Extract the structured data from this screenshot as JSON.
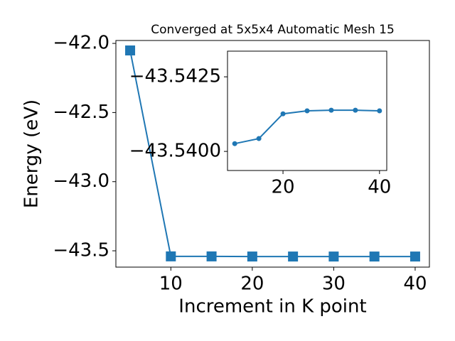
{
  "chart_data": [
    {
      "type": "line",
      "title": "Converged at 5x5x4 Automatic Mesh 15",
      "x_label": "Increment in K point",
      "y_label": "Energy (eV)",
      "x": [
        5,
        10,
        15,
        20,
        25,
        30,
        35,
        40
      ],
      "series": [
        {
          "color": "#1f77b4",
          "marker": "square",
          "values": [
            -42.051,
            -43.54026,
            -43.54043,
            -43.54126,
            -43.54136,
            -43.54138,
            -43.54138,
            -43.54136
          ]
        }
      ],
      "xlim": [
        3.25,
        41.75
      ],
      "xticks": [
        10,
        20,
        30,
        40
      ],
      "ylim": [
        -43.618,
        -41.979
      ],
      "yticks": [
        {
          "value": -42.0,
          "label": "−42.0"
        },
        {
          "value": -42.5,
          "label": "−42.5"
        },
        {
          "value": -43.0,
          "label": "−43.0"
        },
        {
          "value": -43.5,
          "label": "−43.5"
        }
      ]
    },
    {
      "type": "line",
      "x": [
        10,
        15,
        20,
        25,
        30,
        35,
        40
      ],
      "series": [
        {
          "color": "#1f77b4",
          "marker": "circle",
          "values": [
            -43.54026,
            -43.54043,
            -43.54126,
            -43.54136,
            -43.54138,
            -43.54138,
            -43.54136
          ]
        }
      ],
      "xlim": [
        8.5,
        41.5
      ],
      "xticks": [
        20,
        40
      ],
      "ylim": [
        -43.53936,
        -43.54336
      ],
      "yticks": [
        {
          "value": -43.5425,
          "label": "−43.5425"
        },
        {
          "value": -43.54,
          "label": "−43.5400"
        }
      ]
    }
  ]
}
